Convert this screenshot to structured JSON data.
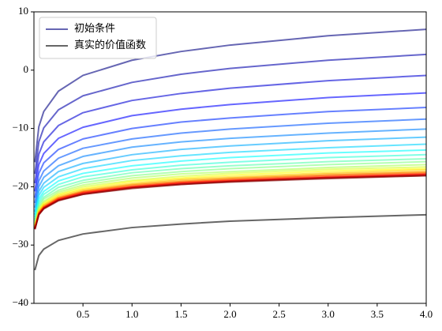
{
  "chart_data": {
    "type": "line",
    "x": [
      0.01,
      0.05,
      0.1,
      0.25,
      0.5,
      1,
      1.5,
      2,
      3,
      4
    ],
    "xlim": [
      0,
      4
    ],
    "xticks": [
      0.5,
      {
        "value": 1,
        "label": "1.0"
      },
      1.5,
      {
        "value": 2,
        "label": "2.0"
      },
      2.5,
      {
        "value": 3,
        "label": "3.0"
      },
      3.5,
      {
        "value": 4,
        "label": "4.0"
      }
    ],
    "ylim": [
      -40,
      10
    ],
    "yticks": [
      {
        "value": -40,
        "label": "−40"
      },
      {
        "value": -30,
        "label": "−30"
      },
      {
        "value": -20,
        "label": "−20"
      },
      {
        "value": -10,
        "label": "−10"
      },
      0,
      10
    ],
    "alpha": 0.6,
    "legend": "upper left",
    "series": [
      {
        "name": "初始条件",
        "color": "#000080",
        "values": [
          -15.8,
          -9.7,
          -7.1,
          -3.6,
          -0.9,
          1.7,
          3.2,
          4.3,
          5.9,
          7.0
        ]
      },
      {
        "color": "#0000aa",
        "values": [
          -17.8,
          -12.3,
          -9.9,
          -6.8,
          -4.4,
          -2.1,
          -0.7,
          0.3,
          1.7,
          2.7
        ]
      },
      {
        "color": "#0000d4",
        "values": [
          -19.4,
          -14.4,
          -12.3,
          -9.5,
          -7.3,
          -5.2,
          -4.0,
          -3.1,
          -1.8,
          -0.9
        ]
      },
      {
        "color": "#0000ff",
        "values": [
          -20.8,
          -16.2,
          -14.3,
          -11.7,
          -9.8,
          -7.8,
          -6.7,
          -5.9,
          -4.7,
          -3.9
        ]
      },
      {
        "color": "#002bff",
        "values": [
          -21.9,
          -17.7,
          -15.9,
          -13.6,
          -11.8,
          -10.0,
          -8.9,
          -8.2,
          -7.1,
          -6.4
        ]
      },
      {
        "color": "#0055ff",
        "values": [
          -22.8,
          -19.0,
          -17.3,
          -15.1,
          -13.4,
          -11.8,
          -10.8,
          -10.1,
          -9.1,
          -8.4
        ]
      },
      {
        "color": "#0080ff",
        "values": [
          -23.6,
          -20.0,
          -18.4,
          -16.4,
          -14.8,
          -13.2,
          -12.3,
          -11.7,
          -10.8,
          -10.1
        ]
      },
      {
        "color": "#00aaff",
        "values": [
          -24.3,
          -20.8,
          -19.4,
          -17.4,
          -16.0,
          -14.5,
          -13.6,
          -13.0,
          -12.1,
          -11.5
        ]
      },
      {
        "color": "#00d4ff",
        "values": [
          -24.8,
          -21.5,
          -20.1,
          -18.3,
          -16.9,
          -15.5,
          -14.7,
          -14.1,
          -13.3,
          -12.7
        ]
      },
      {
        "color": "#00ffff",
        "values": [
          -25.2,
          -22.1,
          -20.8,
          -19.0,
          -17.7,
          -16.4,
          -15.6,
          -15.0,
          -14.2,
          -13.7
        ]
      },
      {
        "color": "#2bffd4",
        "values": [
          -25.6,
          -22.6,
          -21.3,
          -19.6,
          -18.3,
          -17.1,
          -16.3,
          -15.8,
          -15.0,
          -14.5
        ]
      },
      {
        "color": "#55ffaa",
        "values": [
          -25.9,
          -23.0,
          -21.8,
          -20.1,
          -18.9,
          -17.6,
          -16.9,
          -16.4,
          -15.7,
          -15.2
        ]
      },
      {
        "color": "#80ff80",
        "values": [
          -26.2,
          -23.4,
          -22.1,
          -20.6,
          -19.3,
          -18.1,
          -17.4,
          -16.9,
          -16.2,
          -15.7
        ]
      },
      {
        "color": "#aaff55",
        "values": [
          -26.4,
          -23.6,
          -22.5,
          -20.9,
          -19.7,
          -18.5,
          -17.8,
          -17.4,
          -16.7,
          -16.2
        ]
      },
      {
        "color": "#d4ff2b",
        "values": [
          -26.6,
          -23.9,
          -22.7,
          -21.2,
          -20.0,
          -18.9,
          -18.2,
          -17.7,
          -17.0,
          -16.6
        ]
      },
      {
        "color": "#ffff00",
        "values": [
          -26.7,
          -24.1,
          -22.9,
          -21.4,
          -20.3,
          -19.1,
          -18.5,
          -18.0,
          -17.3,
          -16.9
        ]
      },
      {
        "color": "#ffd400",
        "values": [
          -26.8,
          -24.2,
          -23.1,
          -21.6,
          -20.5,
          -19.4,
          -18.7,
          -18.3,
          -17.6,
          -17.1
        ]
      },
      {
        "color": "#ffaa00",
        "values": [
          -26.9,
          -24.3,
          -23.2,
          -21.8,
          -20.7,
          -19.6,
          -18.9,
          -18.5,
          -17.8,
          -17.4
        ]
      },
      {
        "color": "#ff8000",
        "values": [
          -27.0,
          -24.5,
          -23.4,
          -21.9,
          -20.8,
          -19.7,
          -19.1,
          -18.6,
          -18.0,
          -17.5
        ]
      },
      {
        "color": "#ff5500",
        "values": [
          -27.1,
          -24.5,
          -23.5,
          -22.0,
          -20.9,
          -19.9,
          -19.2,
          -18.8,
          -18.1,
          -17.7
        ]
      },
      {
        "color": "#ff2b00",
        "values": [
          -27.1,
          -24.6,
          -23.5,
          -22.1,
          -21.0,
          -20.0,
          -19.3,
          -18.9,
          -18.3,
          -17.8
        ]
      },
      {
        "color": "#ff0000",
        "values": [
          -27.2,
          -24.7,
          -23.6,
          -22.2,
          -21.1,
          -20.1,
          -19.4,
          -19.0,
          -18.4,
          -17.9
        ]
      },
      {
        "color": "#d40000",
        "values": [
          -27.2,
          -24.7,
          -23.7,
          -22.3,
          -21.2,
          -20.1,
          -19.5,
          -19.1,
          -18.4,
          -18.0
        ]
      },
      {
        "color": "#aa0000",
        "values": [
          -27.3,
          -24.8,
          -23.7,
          -22.3,
          -21.3,
          -20.2,
          -19.6,
          -19.1,
          -18.5,
          -18.1
        ]
      },
      {
        "color": "#800000",
        "values": [
          -27.3,
          -24.8,
          -23.8,
          -22.4,
          -21.3,
          -20.3,
          -19.6,
          -19.2,
          -18.6,
          -18.1
        ]
      },
      {
        "name": "真实的价值函数",
        "color": "#000000",
        "values": [
          -34.3,
          -31.8,
          -30.7,
          -29.2,
          -28.1,
          -27.0,
          -26.4,
          -25.9,
          -25.3,
          -24.8
        ]
      }
    ]
  }
}
